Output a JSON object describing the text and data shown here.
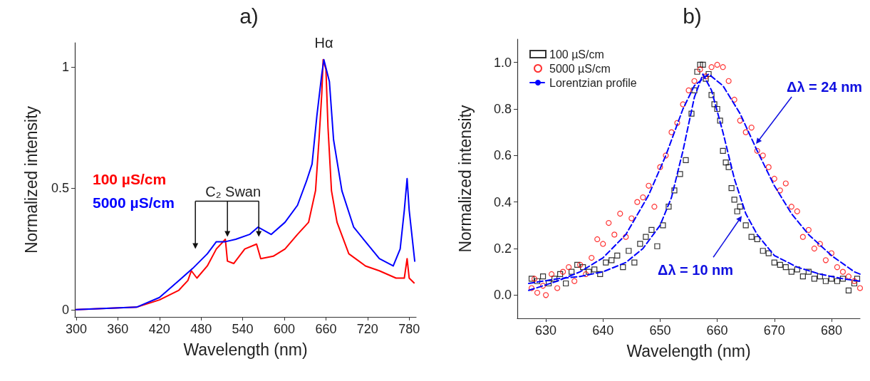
{
  "chart_data": [
    {
      "type": "line",
      "title": "a)",
      "xlabel": "Wavelength (nm)",
      "ylabel": "Normalized intensity",
      "xlim": [
        298,
        790
      ],
      "xticks": [
        300,
        360,
        420,
        480,
        540,
        600,
        660,
        720,
        780
      ],
      "ylim": [
        -0.03,
        1.1
      ],
      "yticks": [
        0,
        0.5,
        1
      ],
      "grid": false,
      "legend": "left",
      "marker": "none",
      "line_style": "solid",
      "series": [
        {
          "name": "100 µS/cm",
          "color": "#ff0000",
          "x": [
            300,
            387,
            420,
            448,
            461,
            466,
            474,
            489,
            502,
            515,
            518,
            527,
            543,
            560,
            566,
            584,
            601,
            619,
            635,
            645,
            650,
            654,
            656,
            660,
            663,
            668,
            676,
            693,
            717,
            737,
            761,
            773,
            777,
            780,
            787
          ],
          "values": [
            0.0,
            0.01,
            0.04,
            0.08,
            0.12,
            0.16,
            0.13,
            0.18,
            0.25,
            0.29,
            0.2,
            0.19,
            0.25,
            0.27,
            0.21,
            0.22,
            0.25,
            0.31,
            0.36,
            0.49,
            0.7,
            0.89,
            1.03,
            0.99,
            0.75,
            0.49,
            0.36,
            0.23,
            0.18,
            0.16,
            0.13,
            0.13,
            0.21,
            0.13,
            0.11
          ]
        },
        {
          "name": "5000 µS/cm",
          "color": "#0000ff",
          "x": [
            300,
            387,
            420,
            448,
            468,
            489,
            502,
            515,
            530,
            550,
            562,
            581,
            601,
            619,
            632,
            640,
            647,
            654,
            657,
            665,
            671,
            683,
            700,
            717,
            737,
            757,
            767,
            773,
            777,
            780,
            788
          ],
          "values": [
            0.0,
            0.01,
            0.05,
            0.12,
            0.17,
            0.23,
            0.28,
            0.28,
            0.29,
            0.31,
            0.34,
            0.31,
            0.36,
            0.43,
            0.53,
            0.6,
            0.8,
            0.97,
            1.03,
            0.94,
            0.7,
            0.49,
            0.34,
            0.28,
            0.21,
            0.18,
            0.25,
            0.41,
            0.54,
            0.41,
            0.2
          ]
        }
      ],
      "annotations": [
        {
          "text": "Hα",
          "x": 657,
          "y": 1.03
        },
        {
          "text": "C₂ Swan",
          "x": 518,
          "y": 0.3
        }
      ]
    },
    {
      "type": "scatter",
      "title": "b)",
      "xlabel": "Wavelength (nm)",
      "ylabel": "Normalized intensity",
      "xlim": [
        625,
        685
      ],
      "xticks": [
        630,
        640,
        650,
        660,
        670,
        680
      ],
      "ylim": [
        -0.1,
        1.1
      ],
      "yticks": [
        {
          "value": 0,
          "label": "0.0"
        },
        {
          "value": 0.2,
          "label": "0.2"
        },
        {
          "value": 0.4,
          "label": "0.4"
        },
        {
          "value": 0.6,
          "label": "0.6"
        },
        {
          "value": 0.8,
          "label": "0.8"
        },
        {
          "value": 1,
          "label": "1.0"
        }
      ],
      "grid": false,
      "legend": "top left",
      "series": [
        {
          "name": "100 µS/cm",
          "color": "#000000",
          "marker": "square",
          "x": [
            627.5,
            628.5,
            629.5,
            630.5,
            631.5,
            632.5,
            633.5,
            634.5,
            635.5,
            636.5,
            637.5,
            638.5,
            639.5,
            640.5,
            641.5,
            642.5,
            643.5,
            644.5,
            645.5,
            646.5,
            647.5,
            648.5,
            649.5,
            650.5,
            651.5,
            652.5,
            653.5,
            654.5,
            655.5,
            656,
            656.5,
            657,
            657.5,
            658,
            658.5,
            659,
            659.5,
            660,
            660.5,
            661,
            661.5,
            662,
            662.5,
            663,
            663.5,
            664,
            665,
            666,
            667,
            668,
            669,
            670,
            671,
            672,
            673,
            674,
            675,
            676,
            677,
            678,
            679,
            680,
            681,
            682,
            683,
            684,
            684.5
          ],
          "values": [
            0.07,
            0.06,
            0.08,
            0.05,
            0.07,
            0.09,
            0.05,
            0.1,
            0.13,
            0.12,
            0.1,
            0.11,
            0.09,
            0.14,
            0.15,
            0.17,
            0.12,
            0.19,
            0.14,
            0.22,
            0.25,
            0.28,
            0.21,
            0.3,
            0.38,
            0.45,
            0.52,
            0.58,
            0.78,
            0.88,
            0.96,
            0.99,
            0.99,
            0.93,
            0.95,
            0.86,
            0.82,
            0.8,
            0.75,
            0.62,
            0.57,
            0.55,
            0.46,
            0.41,
            0.36,
            0.38,
            0.3,
            0.25,
            0.24,
            0.19,
            0.18,
            0.14,
            0.13,
            0.12,
            0.1,
            0.11,
            0.08,
            0.1,
            0.07,
            0.08,
            0.06,
            0.07,
            0.06,
            0.07,
            0.02,
            0.05,
            0.07
          ]
        },
        {
          "name": "5000 µS/cm",
          "color": "#ff0000",
          "marker": "circle",
          "x": [
            627.5,
            628,
            628.5,
            629.5,
            630,
            631,
            632,
            633,
            634,
            635,
            636,
            637,
            638,
            639,
            640,
            641,
            642,
            643,
            644,
            645,
            646,
            647,
            648,
            649,
            650,
            651,
            652,
            653,
            654,
            655,
            656,
            657,
            658,
            659,
            660,
            661,
            662,
            663,
            664,
            665,
            666,
            667,
            668,
            669,
            670,
            671,
            672,
            673,
            674,
            675,
            676,
            677,
            678,
            679,
            680,
            681,
            682,
            683,
            684,
            685
          ],
          "values": [
            0.03,
            0.07,
            0.01,
            0.04,
            0.0,
            0.09,
            0.03,
            0.1,
            0.12,
            0.06,
            0.13,
            0.09,
            0.16,
            0.24,
            0.22,
            0.31,
            0.26,
            0.35,
            0.25,
            0.33,
            0.4,
            0.42,
            0.47,
            0.38,
            0.55,
            0.6,
            0.7,
            0.74,
            0.82,
            0.88,
            0.92,
            0.97,
            0.94,
            0.98,
            0.99,
            0.98,
            0.92,
            0.84,
            0.75,
            0.7,
            0.72,
            0.62,
            0.6,
            0.55,
            0.5,
            0.45,
            0.48,
            0.38,
            0.36,
            0.25,
            0.28,
            0.2,
            0.22,
            0.15,
            0.18,
            0.12,
            0.1,
            0.08,
            0.06,
            0.03
          ]
        },
        {
          "name": "Lorentzian profile",
          "type": "line",
          "color": "#0000ff",
          "marker": "none",
          "line_style": "dashed",
          "x": [
            627,
            632,
            636,
            640,
            644,
            648,
            651,
            654,
            656,
            658.5,
            661,
            664,
            667,
            670,
            673,
            676,
            680,
            684,
            685
          ],
          "values": [
            0.02,
            0.06,
            0.1,
            0.16,
            0.26,
            0.43,
            0.6,
            0.8,
            0.9,
            0.95,
            0.9,
            0.78,
            0.62,
            0.47,
            0.35,
            0.26,
            0.17,
            0.1,
            0.09
          ]
        },
        {
          "type": "line",
          "color": "#0000ff",
          "marker": "none",
          "line_style": "dashed",
          "x": [
            627,
            632,
            636,
            640,
            644,
            647,
            650,
            652,
            654,
            656,
            657.5,
            659,
            661,
            663,
            665,
            667,
            670,
            674,
            678,
            682,
            685
          ],
          "values": [
            0.05,
            0.07,
            0.08,
            0.1,
            0.14,
            0.2,
            0.3,
            0.42,
            0.62,
            0.85,
            0.95,
            0.88,
            0.7,
            0.5,
            0.35,
            0.26,
            0.17,
            0.12,
            0.09,
            0.07,
            0.06
          ]
        }
      ],
      "annotations": [
        {
          "text": "Δλ = 24 nm",
          "x": 666.8,
          "y": 0.65
        },
        {
          "text": "Δλ = 10 nm",
          "x": 664.3,
          "y": 0.34
        }
      ]
    }
  ]
}
